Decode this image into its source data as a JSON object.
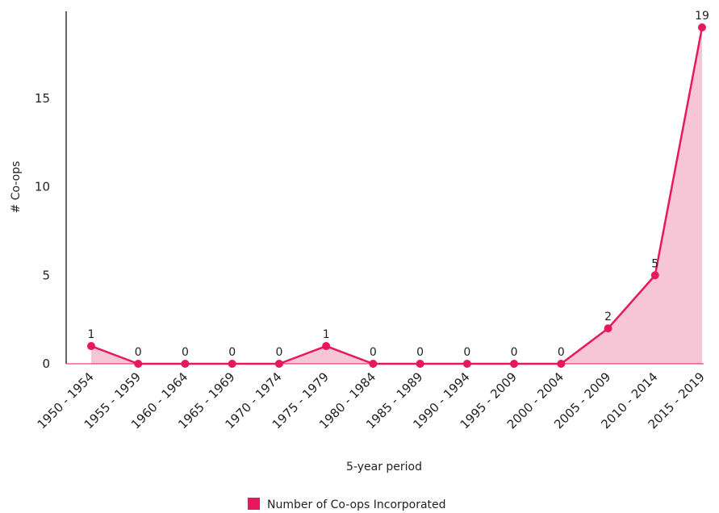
{
  "chart_data": {
    "type": "area",
    "categories": [
      "1950 - 1954",
      "1955 - 1959",
      "1960 - 1964",
      "1965 - 1969",
      "1970 - 1974",
      "1975 - 1979",
      "1980 - 1984",
      "1985 - 1989",
      "1990 - 1994",
      "1995 - 2009",
      "2000 - 2004",
      "2005 - 2009",
      "2010 - 2014",
      "2015 - 2019"
    ],
    "series": [
      {
        "name": "Number of Co-ops Incorporated",
        "values": [
          1,
          0,
          0,
          0,
          0,
          1,
          0,
          0,
          0,
          0,
          0,
          2,
          5,
          19
        ],
        "color": "#e8185e",
        "fill": "#f6c6d6"
      }
    ],
    "data_labels": [
      "1",
      "0",
      "0",
      "0",
      "0",
      "1",
      "0",
      "0",
      "0",
      "0",
      "0",
      "2",
      "5",
      "19"
    ],
    "xlabel": "5-year period",
    "ylabel": "# Co-ops",
    "ylim": [
      0,
      19.6
    ],
    "yticks": [
      0,
      5,
      10,
      15
    ],
    "ytick_labels": [
      "0",
      "5",
      "10",
      "15"
    ],
    "grid": false,
    "legend_position": "bottom"
  }
}
